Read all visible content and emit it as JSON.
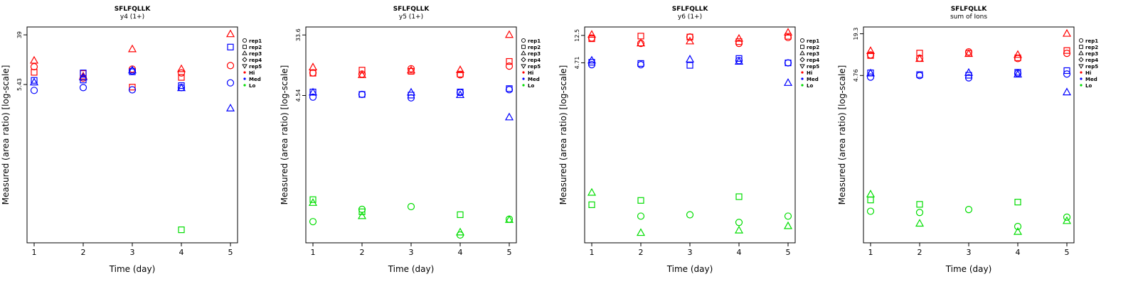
{
  "chart_data": [
    {
      "type": "scatter",
      "title": "SFLFQLLK",
      "subtitle": "y4 (1+)",
      "xlabel": "Time (day)",
      "ylabel": "Measured (area ratio) [log-scale]",
      "x_ticks": [
        "1",
        "2",
        "3",
        "4",
        "5"
      ],
      "y_ticks": [
        "39",
        "5.43"
      ],
      "y_scale": "log",
      "legend_placement": "right",
      "points": [
        {
          "x": 1,
          "y": 14.0,
          "rep": "rep3",
          "level": "Hi"
        },
        {
          "x": 1,
          "y": 11.0,
          "rep": "rep1",
          "level": "Hi"
        },
        {
          "x": 1,
          "y": 8.8,
          "rep": "rep2",
          "level": "Hi"
        },
        {
          "x": 1,
          "y": 6.4,
          "rep": "rep2",
          "level": "Med"
        },
        {
          "x": 1,
          "y": 5.9,
          "rep": "rep3",
          "level": "Med"
        },
        {
          "x": 1,
          "y": 4.3,
          "rep": "rep1",
          "level": "Med"
        },
        {
          "x": 2,
          "y": 8.4,
          "rep": "rep2",
          "level": "Hi"
        },
        {
          "x": 2,
          "y": 7.5,
          "rep": "rep3",
          "level": "Hi"
        },
        {
          "x": 2,
          "y": 7.0,
          "rep": "rep1",
          "level": "Hi"
        },
        {
          "x": 2,
          "y": 8.6,
          "rep": "rep2",
          "level": "Med"
        },
        {
          "x": 2,
          "y": 7.2,
          "rep": "rep3",
          "level": "Med"
        },
        {
          "x": 2,
          "y": 6.5,
          "rep": "rep2",
          "level": "Med"
        },
        {
          "x": 2,
          "y": 4.8,
          "rep": "rep1",
          "level": "Med"
        },
        {
          "x": 3,
          "y": 22.0,
          "rep": "rep3",
          "level": "Hi"
        },
        {
          "x": 3,
          "y": 10.0,
          "rep": "rep1",
          "level": "Hi"
        },
        {
          "x": 3,
          "y": 4.9,
          "rep": "rep2",
          "level": "Hi"
        },
        {
          "x": 3,
          "y": 9.3,
          "rep": "rep1",
          "level": "Med"
        },
        {
          "x": 3,
          "y": 9.0,
          "rep": "rep2",
          "level": "Med"
        },
        {
          "x": 3,
          "y": 9.5,
          "rep": "rep3",
          "level": "Med"
        },
        {
          "x": 3,
          "y": 4.4,
          "rep": "rep1",
          "level": "Med"
        },
        {
          "x": 4,
          "y": 10.0,
          "rep": "rep3",
          "level": "Hi"
        },
        {
          "x": 4,
          "y": 8.6,
          "rep": "rep1",
          "level": "Hi"
        },
        {
          "x": 4,
          "y": 7.2,
          "rep": "rep2",
          "level": "Hi"
        },
        {
          "x": 4,
          "y": 5.2,
          "rep": "rep2",
          "level": "Med"
        },
        {
          "x": 4,
          "y": 4.8,
          "rep": "rep1",
          "level": "Med"
        },
        {
          "x": 4,
          "y": 4.7,
          "rep": "rep3",
          "level": "Med"
        },
        {
          "x": 4,
          "y": 0.017,
          "rep": "rep2",
          "level": "Lo"
        },
        {
          "x": 5,
          "y": 40.0,
          "rep": "rep3",
          "level": "Hi"
        },
        {
          "x": 5,
          "y": 11.5,
          "rep": "rep1",
          "level": "Hi"
        },
        {
          "x": 5,
          "y": 24.0,
          "rep": "rep2",
          "level": "Med"
        },
        {
          "x": 5,
          "y": 5.8,
          "rep": "rep1",
          "level": "Med"
        },
        {
          "x": 5,
          "y": 2.1,
          "rep": "rep3",
          "level": "Med"
        }
      ]
    },
    {
      "type": "scatter",
      "title": "SFLFQLLK",
      "subtitle": "y5 (1+)",
      "xlabel": "Time (day)",
      "ylabel": "Measured (area ratio) [log-scale]",
      "x_ticks": [
        "1",
        "2",
        "3",
        "4",
        "5"
      ],
      "y_ticks": [
        "33.6",
        "4.54"
      ],
      "y_scale": "log",
      "legend_placement": "right",
      "points": [
        {
          "x": 1,
          "y": 11.5,
          "rep": "rep3",
          "level": "Hi"
        },
        {
          "x": 1,
          "y": 9.6,
          "rep": "rep1",
          "level": "Hi"
        },
        {
          "x": 1,
          "y": 9.5,
          "rep": "rep2",
          "level": "Hi"
        },
        {
          "x": 1,
          "y": 5.1,
          "rep": "rep2",
          "level": "Med"
        },
        {
          "x": 1,
          "y": 5.0,
          "rep": "rep3",
          "level": "Med"
        },
        {
          "x": 1,
          "y": 4.3,
          "rep": "rep1",
          "level": "Med"
        },
        {
          "x": 1,
          "y": 0.145,
          "rep": "rep2",
          "level": "Lo"
        },
        {
          "x": 1,
          "y": 0.13,
          "rep": "rep3",
          "level": "Lo"
        },
        {
          "x": 1,
          "y": 0.07,
          "rep": "rep1",
          "level": "Lo"
        },
        {
          "x": 2,
          "y": 10.5,
          "rep": "rep2",
          "level": "Hi"
        },
        {
          "x": 2,
          "y": 9.2,
          "rep": "rep1",
          "level": "Hi"
        },
        {
          "x": 2,
          "y": 8.9,
          "rep": "rep3",
          "level": "Hi"
        },
        {
          "x": 2,
          "y": 4.7,
          "rep": "rep1",
          "level": "Med"
        },
        {
          "x": 2,
          "y": 4.7,
          "rep": "rep2",
          "level": "Med"
        },
        {
          "x": 2,
          "y": 0.105,
          "rep": "rep1",
          "level": "Lo"
        },
        {
          "x": 2,
          "y": 0.097,
          "rep": "rep2",
          "level": "Lo"
        },
        {
          "x": 2,
          "y": 0.084,
          "rep": "rep3",
          "level": "Lo"
        },
        {
          "x": 3,
          "y": 11.0,
          "rep": "rep1",
          "level": "Hi"
        },
        {
          "x": 3,
          "y": 10.4,
          "rep": "rep3",
          "level": "Hi"
        },
        {
          "x": 3,
          "y": 10.1,
          "rep": "rep2",
          "level": "Hi"
        },
        {
          "x": 3,
          "y": 5.0,
          "rep": "rep3",
          "level": "Med"
        },
        {
          "x": 3,
          "y": 4.6,
          "rep": "rep2",
          "level": "Med"
        },
        {
          "x": 3,
          "y": 4.2,
          "rep": "rep1",
          "level": "Med"
        },
        {
          "x": 3,
          "y": 0.115,
          "rep": "rep1",
          "level": "Lo"
        },
        {
          "x": 4,
          "y": 10.5,
          "rep": "rep3",
          "level": "Hi"
        },
        {
          "x": 4,
          "y": 9.2,
          "rep": "rep2",
          "level": "Hi"
        },
        {
          "x": 4,
          "y": 9.0,
          "rep": "rep1",
          "level": "Hi"
        },
        {
          "x": 4,
          "y": 5.1,
          "rep": "rep2",
          "level": "Med"
        },
        {
          "x": 4,
          "y": 5.0,
          "rep": "rep1",
          "level": "Med"
        },
        {
          "x": 4,
          "y": 4.6,
          "rep": "rep3",
          "level": "Med"
        },
        {
          "x": 4,
          "y": 0.088,
          "rep": "rep2",
          "level": "Lo"
        },
        {
          "x": 4,
          "y": 0.049,
          "rep": "rep3",
          "level": "Lo"
        },
        {
          "x": 4,
          "y": 0.045,
          "rep": "rep1",
          "level": "Lo"
        },
        {
          "x": 5,
          "y": 33.6,
          "rep": "rep3",
          "level": "Hi"
        },
        {
          "x": 5,
          "y": 14.0,
          "rep": "rep2",
          "level": "Hi"
        },
        {
          "x": 5,
          "y": 12.0,
          "rep": "rep1",
          "level": "Hi"
        },
        {
          "x": 5,
          "y": 5.7,
          "rep": "rep2",
          "level": "Med"
        },
        {
          "x": 5,
          "y": 5.5,
          "rep": "rep1",
          "level": "Med"
        },
        {
          "x": 5,
          "y": 2.2,
          "rep": "rep3",
          "level": "Med"
        },
        {
          "x": 5,
          "y": 0.076,
          "rep": "rep1",
          "level": "Lo"
        },
        {
          "x": 5,
          "y": 0.074,
          "rep": "rep3",
          "level": "Lo"
        }
      ]
    },
    {
      "type": "scatter",
      "title": "SFLFQLLK",
      "subtitle": "y6 (1+)",
      "xlabel": "Time (day)",
      "ylabel": "Measured (area ratio) [log-scale]",
      "x_ticks": [
        "1",
        "2",
        "3",
        "4",
        "5"
      ],
      "y_ticks": [
        "12.5",
        "4.71"
      ],
      "y_scale": "log",
      "legend_placement": "right",
      "points": [
        {
          "x": 1,
          "y": 12.8,
          "rep": "rep3",
          "level": "Hi"
        },
        {
          "x": 1,
          "y": 11.4,
          "rep": "rep1",
          "level": "Hi"
        },
        {
          "x": 1,
          "y": 11.1,
          "rep": "rep2",
          "level": "Hi"
        },
        {
          "x": 1,
          "y": 5.1,
          "rep": "rep3",
          "level": "Med"
        },
        {
          "x": 1,
          "y": 4.8,
          "rep": "rep2",
          "level": "Med"
        },
        {
          "x": 1,
          "y": 4.4,
          "rep": "rep1",
          "level": "Med"
        },
        {
          "x": 1,
          "y": 0.046,
          "rep": "rep3",
          "level": "Lo"
        },
        {
          "x": 1,
          "y": 0.03,
          "rep": "rep2",
          "level": "Lo"
        },
        {
          "x": 2,
          "y": 12.2,
          "rep": "rep2",
          "level": "Hi"
        },
        {
          "x": 2,
          "y": 9.4,
          "rep": "rep1",
          "level": "Hi"
        },
        {
          "x": 2,
          "y": 9.4,
          "rep": "rep3",
          "level": "Hi"
        },
        {
          "x": 2,
          "y": 4.6,
          "rep": "rep2",
          "level": "Med"
        },
        {
          "x": 2,
          "y": 4.4,
          "rep": "rep1",
          "level": "Med"
        },
        {
          "x": 2,
          "y": 0.035,
          "rep": "rep2",
          "level": "Lo"
        },
        {
          "x": 2,
          "y": 0.02,
          "rep": "rep1",
          "level": "Lo"
        },
        {
          "x": 2,
          "y": 0.011,
          "rep": "rep3",
          "level": "Lo"
        },
        {
          "x": 3,
          "y": 11.8,
          "rep": "rep1",
          "level": "Hi"
        },
        {
          "x": 3,
          "y": 11.8,
          "rep": "rep2",
          "level": "Hi"
        },
        {
          "x": 3,
          "y": 10.1,
          "rep": "rep3",
          "level": "Hi"
        },
        {
          "x": 3,
          "y": 5.3,
          "rep": "rep3",
          "level": "Med"
        },
        {
          "x": 3,
          "y": 4.3,
          "rep": "rep2",
          "level": "Med"
        },
        {
          "x": 3,
          "y": 0.021,
          "rep": "rep1",
          "level": "Lo"
        },
        {
          "x": 4,
          "y": 11.1,
          "rep": "rep3",
          "level": "Hi"
        },
        {
          "x": 4,
          "y": 10.0,
          "rep": "rep2",
          "level": "Hi"
        },
        {
          "x": 4,
          "y": 9.4,
          "rep": "rep1",
          "level": "Hi"
        },
        {
          "x": 4,
          "y": 5.5,
          "rep": "rep2",
          "level": "Med"
        },
        {
          "x": 4,
          "y": 5.1,
          "rep": "rep1",
          "level": "Med"
        },
        {
          "x": 4,
          "y": 4.9,
          "rep": "rep3",
          "level": "Med"
        },
        {
          "x": 4,
          "y": 0.04,
          "rep": "rep2",
          "level": "Lo"
        },
        {
          "x": 4,
          "y": 0.016,
          "rep": "rep1",
          "level": "Lo"
        },
        {
          "x": 4,
          "y": 0.012,
          "rep": "rep3",
          "level": "Lo"
        },
        {
          "x": 5,
          "y": 13.8,
          "rep": "rep3",
          "level": "Hi"
        },
        {
          "x": 5,
          "y": 12.1,
          "rep": "rep2",
          "level": "Hi"
        },
        {
          "x": 5,
          "y": 11.6,
          "rep": "rep1",
          "level": "Hi"
        },
        {
          "x": 5,
          "y": 4.7,
          "rep": "rep1",
          "level": "Med"
        },
        {
          "x": 5,
          "y": 4.7,
          "rep": "rep2",
          "level": "Med"
        },
        {
          "x": 5,
          "y": 2.3,
          "rep": "rep3",
          "level": "Med"
        },
        {
          "x": 5,
          "y": 0.02,
          "rep": "rep1",
          "level": "Lo"
        },
        {
          "x": 5,
          "y": 0.014,
          "rep": "rep3",
          "level": "Lo"
        }
      ]
    },
    {
      "type": "scatter",
      "title": "SFLFQLLK",
      "subtitle": "sum of Ions",
      "xlabel": "Time (day)",
      "ylabel": "Measured (area ratio) [log-scale]",
      "x_ticks": [
        "1",
        "2",
        "3",
        "4",
        "5"
      ],
      "y_ticks": [
        "19.3",
        "4.76"
      ],
      "y_scale": "log",
      "legend_placement": "right",
      "points": [
        {
          "x": 1,
          "y": 10.8,
          "rep": "rep3",
          "level": "Hi"
        },
        {
          "x": 1,
          "y": 9.5,
          "rep": "rep1",
          "level": "Hi"
        },
        {
          "x": 1,
          "y": 9.3,
          "rep": "rep2",
          "level": "Hi"
        },
        {
          "x": 1,
          "y": 5.2,
          "rep": "rep2",
          "level": "Med"
        },
        {
          "x": 1,
          "y": 5.1,
          "rep": "rep3",
          "level": "Med"
        },
        {
          "x": 1,
          "y": 4.5,
          "rep": "rep1",
          "level": "Med"
        },
        {
          "x": 1,
          "y": 0.088,
          "rep": "rep3",
          "level": "Lo"
        },
        {
          "x": 1,
          "y": 0.073,
          "rep": "rep2",
          "level": "Lo"
        },
        {
          "x": 1,
          "y": 0.05,
          "rep": "rep1",
          "level": "Lo"
        },
        {
          "x": 2,
          "y": 10.1,
          "rep": "rep2",
          "level": "Hi"
        },
        {
          "x": 2,
          "y": 8.5,
          "rep": "rep1",
          "level": "Hi"
        },
        {
          "x": 2,
          "y": 8.3,
          "rep": "rep3",
          "level": "Hi"
        },
        {
          "x": 2,
          "y": 4.9,
          "rep": "rep2",
          "level": "Med"
        },
        {
          "x": 2,
          "y": 4.75,
          "rep": "rep1",
          "level": "Med"
        },
        {
          "x": 2,
          "y": 0.063,
          "rep": "rep2",
          "level": "Lo"
        },
        {
          "x": 2,
          "y": 0.048,
          "rep": "rep1",
          "level": "Lo"
        },
        {
          "x": 2,
          "y": 0.033,
          "rep": "rep3",
          "level": "Lo"
        },
        {
          "x": 3,
          "y": 10.5,
          "rep": "rep1",
          "level": "Hi"
        },
        {
          "x": 3,
          "y": 10.0,
          "rep": "rep2",
          "level": "Hi"
        },
        {
          "x": 3,
          "y": 9.8,
          "rep": "rep3",
          "level": "Hi"
        },
        {
          "x": 3,
          "y": 5.2,
          "rep": "rep3",
          "level": "Med"
        },
        {
          "x": 3,
          "y": 4.8,
          "rep": "rep2",
          "level": "Med"
        },
        {
          "x": 3,
          "y": 4.4,
          "rep": "rep1",
          "level": "Med"
        },
        {
          "x": 3,
          "y": 0.053,
          "rep": "rep1",
          "level": "Lo"
        },
        {
          "x": 4,
          "y": 9.5,
          "rep": "rep3",
          "level": "Hi"
        },
        {
          "x": 4,
          "y": 8.6,
          "rep": "rep2",
          "level": "Hi"
        },
        {
          "x": 4,
          "y": 8.4,
          "rep": "rep1",
          "level": "Hi"
        },
        {
          "x": 4,
          "y": 5.3,
          "rep": "rep2",
          "level": "Med"
        },
        {
          "x": 4,
          "y": 5.1,
          "rep": "rep1",
          "level": "Med"
        },
        {
          "x": 4,
          "y": 4.9,
          "rep": "rep3",
          "level": "Med"
        },
        {
          "x": 4,
          "y": 0.068,
          "rep": "rep2",
          "level": "Lo"
        },
        {
          "x": 4,
          "y": 0.03,
          "rep": "rep1",
          "level": "Lo"
        },
        {
          "x": 4,
          "y": 0.025,
          "rep": "rep3",
          "level": "Lo"
        },
        {
          "x": 5,
          "y": 19.3,
          "rep": "rep3",
          "level": "Hi"
        },
        {
          "x": 5,
          "y": 11.0,
          "rep": "rep2",
          "level": "Hi"
        },
        {
          "x": 5,
          "y": 10.0,
          "rep": "rep1",
          "level": "Hi"
        },
        {
          "x": 5,
          "y": 5.6,
          "rep": "rep2",
          "level": "Med"
        },
        {
          "x": 5,
          "y": 5.0,
          "rep": "rep1",
          "level": "Med"
        },
        {
          "x": 5,
          "y": 2.7,
          "rep": "rep3",
          "level": "Med"
        },
        {
          "x": 5,
          "y": 0.041,
          "rep": "rep1",
          "level": "Lo"
        },
        {
          "x": 5,
          "y": 0.036,
          "rep": "rep3",
          "level": "Lo"
        }
      ]
    }
  ],
  "legend": {
    "entries": [
      {
        "label": "rep1",
        "shape": "circle"
      },
      {
        "label": "rep2",
        "shape": "square"
      },
      {
        "label": "rep3",
        "shape": "triangle-up"
      },
      {
        "label": "rep4",
        "shape": "diamond"
      },
      {
        "label": "rep5",
        "shape": "triangle-down"
      },
      {
        "label": "Hi",
        "shape": "dot",
        "color": "#ff0000"
      },
      {
        "label": "Med",
        "shape": "dot",
        "color": "#0000ff"
      },
      {
        "label": "Lo",
        "shape": "dot",
        "color": "#00dd00"
      }
    ]
  },
  "colors": {
    "Hi": "#ff0000",
    "Med": "#0000ff",
    "Lo": "#00dd00",
    "axis": "#000000"
  }
}
